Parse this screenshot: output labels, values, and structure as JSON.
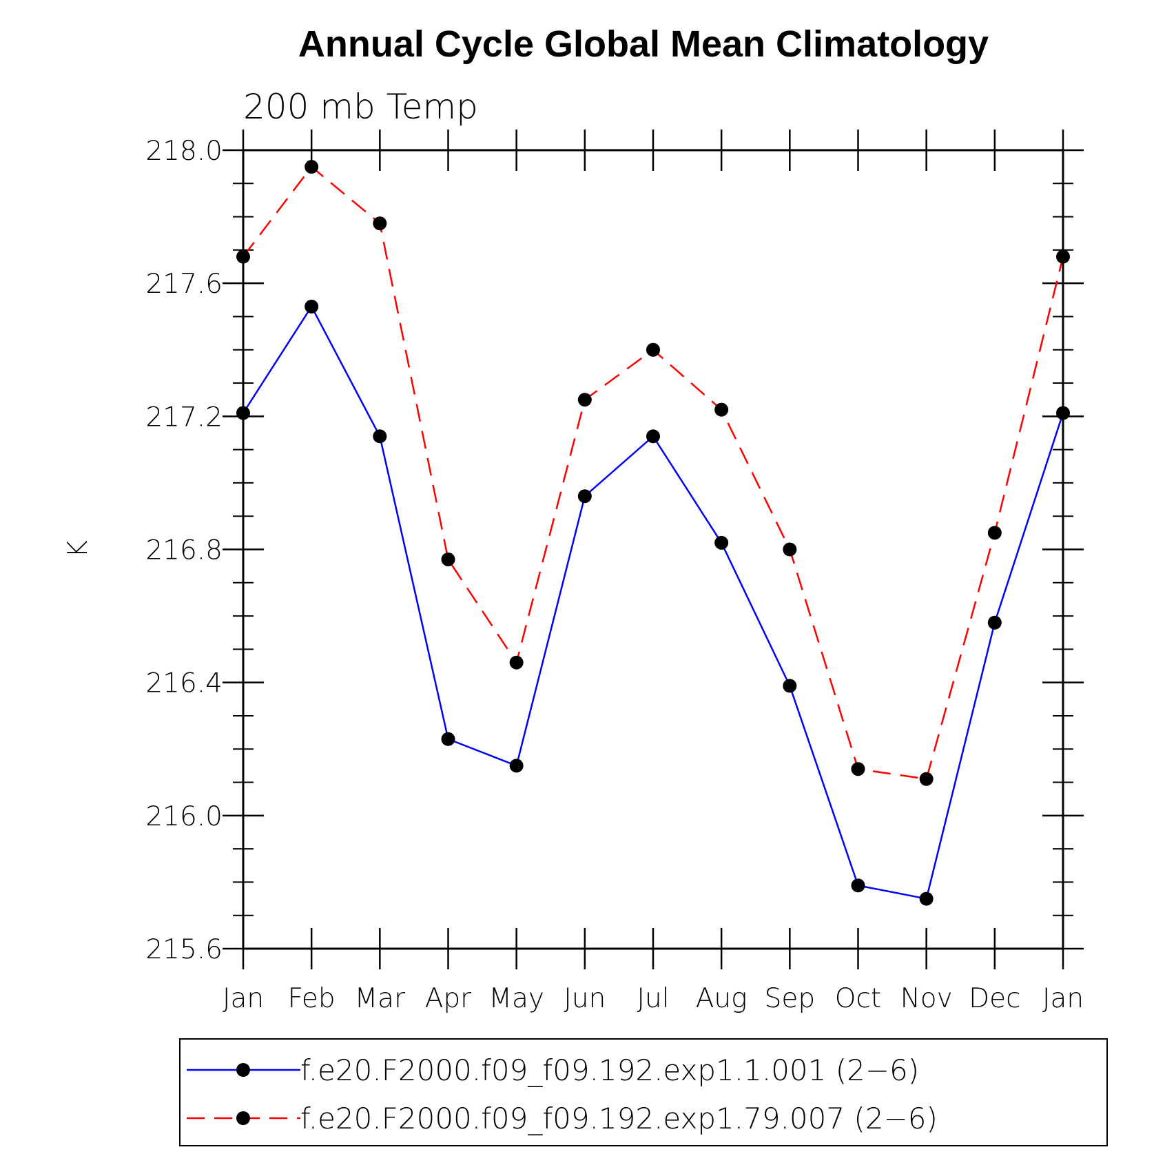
{
  "chart_data": {
    "type": "line",
    "title": "Annual Cycle Global Mean Climatology",
    "subtitle": "200 mb Temp",
    "xlabel": "",
    "ylabel": "K",
    "categories": [
      "Jan",
      "Feb",
      "Mar",
      "Apr",
      "May",
      "Jun",
      "Jul",
      "Aug",
      "Sep",
      "Oct",
      "Nov",
      "Dec",
      "Jan"
    ],
    "ylim": [
      215.6,
      218.0
    ],
    "yticks": [
      "218.0",
      "217.6",
      "217.2",
      "216.8",
      "216.4",
      "216.0",
      "215.6"
    ],
    "series": [
      {
        "name": "f.e20.F2000.f09_f09.192.exp1.1.001 (2−6)",
        "color": "#0000ff",
        "dash": "solid",
        "values": [
          217.21,
          217.53,
          217.14,
          216.23,
          216.15,
          216.96,
          217.14,
          216.82,
          216.39,
          215.79,
          215.75,
          216.58,
          217.21
        ]
      },
      {
        "name": "f.e20.F2000.f09_f09.192.exp1.79.007 (2−6)",
        "color": "#ff0000",
        "dash": "dashed",
        "values": [
          217.68,
          217.95,
          217.78,
          216.77,
          216.46,
          217.25,
          217.4,
          217.22,
          216.8,
          216.14,
          216.11,
          216.85,
          217.68
        ]
      }
    ],
    "marker": "filled-circle",
    "legend_position": "bottom"
  }
}
